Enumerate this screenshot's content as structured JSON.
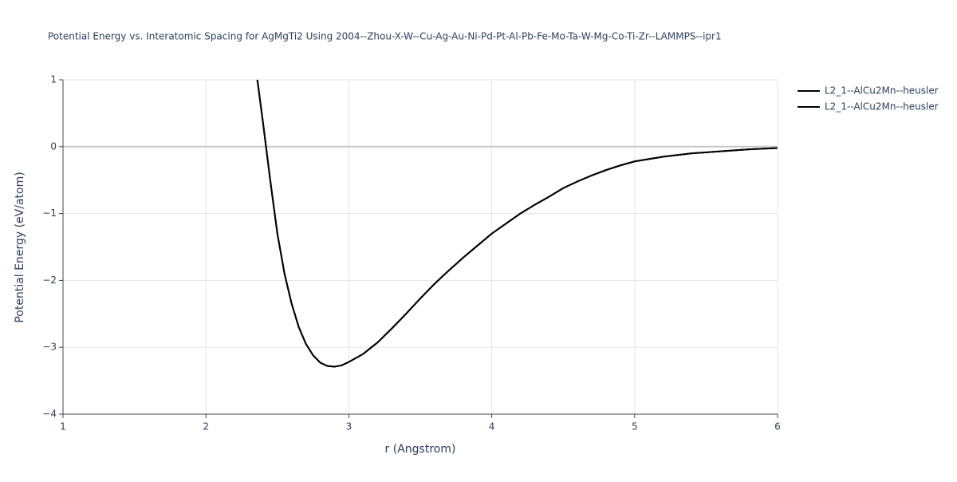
{
  "chart_data": {
    "type": "line",
    "title": "Potential Energy vs. Interatomic Spacing for AgMgTi2 Using 2004--Zhou-X-W--Cu-Ag-Au-Ni-Pd-Pt-Al-Pb-Fe-Mo-Ta-W-Mg-Co-Ti-Zr--LAMMPS--ipr1",
    "x_label": "r (Angstrom)",
    "y_label": "Potential Energy (eV/atom)",
    "x": [
      2.36,
      2.4,
      2.45,
      2.5,
      2.55,
      2.6,
      2.65,
      2.7,
      2.75,
      2.8,
      2.85,
      2.9,
      2.95,
      3.0,
      3.1,
      3.2,
      3.3,
      3.4,
      3.5,
      3.6,
      3.7,
      3.8,
      3.9,
      4.0,
      4.1,
      4.2,
      4.3,
      4.4,
      4.5,
      4.6,
      4.7,
      4.8,
      4.9,
      5.0,
      5.2,
      5.4,
      5.6,
      5.8,
      6.0
    ],
    "series": [
      {
        "name": "L2_1--AlCu2Mn--heusler",
        "color": "#000000",
        "values": [
          1.0,
          0.35,
          -0.5,
          -1.3,
          -1.9,
          -2.35,
          -2.7,
          -2.95,
          -3.12,
          -3.23,
          -3.28,
          -3.29,
          -3.27,
          -3.22,
          -3.1,
          -2.93,
          -2.72,
          -2.5,
          -2.27,
          -2.05,
          -1.85,
          -1.66,
          -1.48,
          -1.3,
          -1.15,
          -1.0,
          -0.87,
          -0.75,
          -0.62,
          -0.52,
          -0.43,
          -0.35,
          -0.28,
          -0.22,
          -0.15,
          -0.1,
          -0.07,
          -0.04,
          -0.02
        ]
      },
      {
        "name": "L2_1--AlCu2Mn--heusler",
        "color": "#000000",
        "values": [
          1.0,
          0.35,
          -0.5,
          -1.3,
          -1.9,
          -2.35,
          -2.7,
          -2.95,
          -3.12,
          -3.23,
          -3.28,
          -3.29,
          -3.27,
          -3.22,
          -3.1,
          -2.93,
          -2.72,
          -2.5,
          -2.27,
          -2.05,
          -1.85,
          -1.66,
          -1.48,
          -1.3,
          -1.15,
          -1.0,
          -0.87,
          -0.75,
          -0.62,
          -0.52,
          -0.43,
          -0.35,
          -0.28,
          -0.22,
          -0.15,
          -0.1,
          -0.07,
          -0.04,
          -0.02
        ]
      }
    ],
    "xlim": [
      1,
      6
    ],
    "xticks": [
      1,
      2,
      3,
      4,
      5,
      6
    ],
    "ylim": [
      -4,
      1
    ],
    "yticks": [
      {
        "value": -4,
        "label": "−4"
      },
      {
        "value": -3,
        "label": "−3"
      },
      {
        "value": -2,
        "label": "−2"
      },
      {
        "value": -1,
        "label": "−1"
      },
      0,
      1
    ],
    "grid": true
  }
}
